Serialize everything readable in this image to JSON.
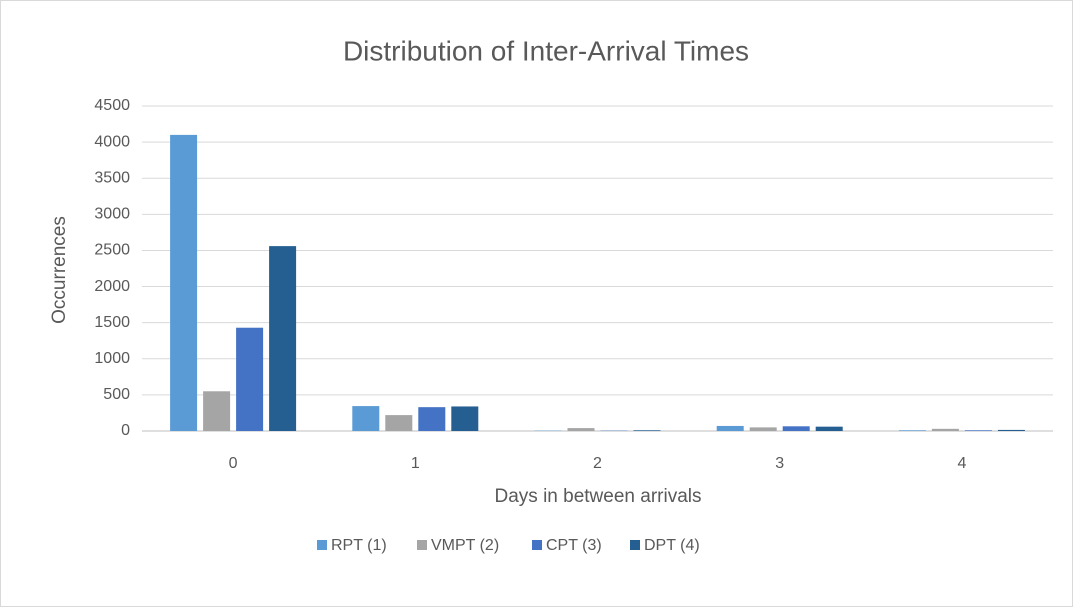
{
  "chart_data": {
    "type": "bar",
    "title": "Distribution of Inter-Arrival Times",
    "x_label": "Days in between arrivals",
    "y_label": "Occurrences",
    "categories": [
      "0",
      "1",
      "2",
      "3",
      "4"
    ],
    "series": [
      {
        "name": "RPT (1)",
        "color": "#5b9bd5",
        "values": [
          4100,
          345,
          5,
          70,
          10
        ]
      },
      {
        "name": "VMPT (2)",
        "color": "#a5a5a5",
        "values": [
          550,
          220,
          40,
          50,
          30
        ]
      },
      {
        "name": "CPT (3)",
        "color": "#4472c4",
        "values": [
          1430,
          330,
          5,
          65,
          10
        ]
      },
      {
        "name": "DPT (4)",
        "color": "#255e91",
        "values": [
          2560,
          340,
          10,
          60,
          15
        ]
      }
    ],
    "ylim": [
      0,
      4500
    ],
    "yticks": [
      0,
      500,
      1000,
      1500,
      2000,
      2500,
      3000,
      3500,
      4000,
      4500
    ],
    "grid": true,
    "legend": "bottom"
  }
}
